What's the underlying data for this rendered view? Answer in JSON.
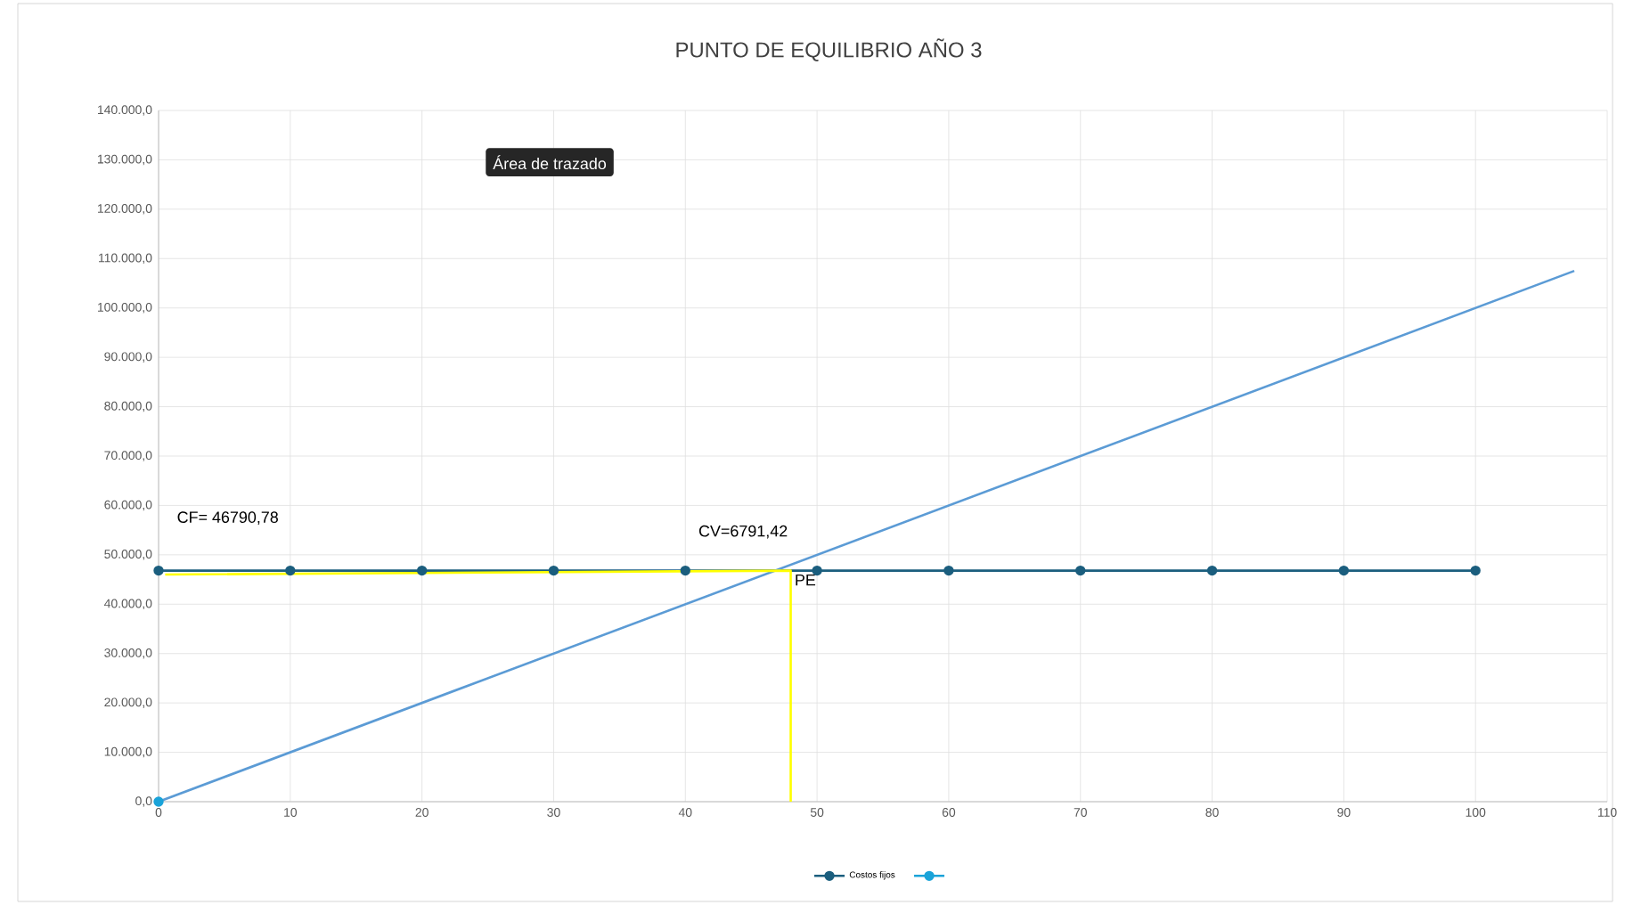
{
  "chart_data": {
    "type": "line",
    "title": "PUNTO DE EQUILIBRIO AÑO 3",
    "xlim": [
      0,
      110
    ],
    "xticks": [
      0,
      10,
      20,
      30,
      40,
      50,
      60,
      70,
      80,
      90,
      100,
      110
    ],
    "ylim": [
      0,
      140000
    ],
    "yticks": [
      {
        "value": 0,
        "label": "0,0"
      },
      {
        "value": 10000,
        "label": "10.000,0"
      },
      {
        "value": 20000,
        "label": "20.000,0"
      },
      {
        "value": 30000,
        "label": "30.000,0"
      },
      {
        "value": 40000,
        "label": "40.000,0"
      },
      {
        "value": 50000,
        "label": "50.000,0"
      },
      {
        "value": 60000,
        "label": "60.000,0"
      },
      {
        "value": 70000,
        "label": "70.000,0"
      },
      {
        "value": 80000,
        "label": "80.000,0"
      },
      {
        "value": 90000,
        "label": "90.000,0"
      },
      {
        "value": 100000,
        "label": "100.000,0"
      },
      {
        "value": 110000,
        "label": "110.000,0"
      },
      {
        "value": 120000,
        "label": "120.000,0"
      },
      {
        "value": 130000,
        "label": "130.000,0"
      },
      {
        "value": 140000,
        "label": "140.000,0"
      }
    ],
    "grid": true,
    "legend": "bottom",
    "series": [
      {
        "name": "Costos fijos",
        "color": "#1b5e7e",
        "marker": "circle",
        "x": [
          0,
          10,
          20,
          30,
          40,
          50,
          60,
          70,
          80,
          90,
          100
        ],
        "values": [
          46800,
          46800,
          46800,
          46800,
          46800,
          46800,
          46800,
          46800,
          46800,
          46800,
          46800
        ]
      },
      {
        "color": "#1aa3d9",
        "marker": "circle",
        "x": [
          0
        ],
        "values": [
          0
        ]
      },
      {
        "color": "#5b9bd5",
        "marker": "none",
        "x": [
          0,
          107.5
        ],
        "values": [
          0,
          107500
        ]
      },
      {
        "color": "#ffff00",
        "marker": "none",
        "x": [
          48,
          48,
          0.5
        ],
        "values": [
          0,
          46800,
          46000
        ]
      }
    ],
    "annotations": [
      "CF= 46790,78",
      "CV=6791,42",
      {
        "text": "PE",
        "x": 48,
        "y": 46800
      },
      "Área de trazado"
    ]
  }
}
